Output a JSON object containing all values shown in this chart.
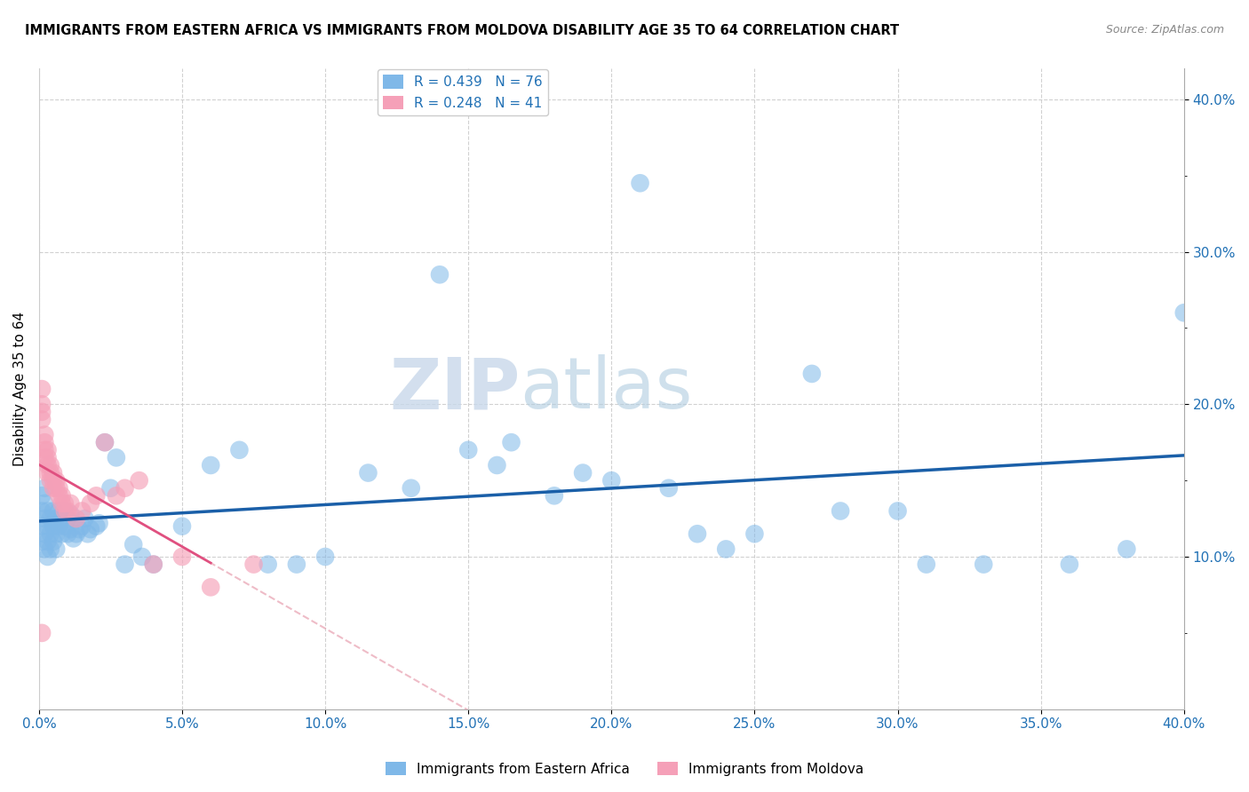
{
  "title": "IMMIGRANTS FROM EASTERN AFRICA VS IMMIGRANTS FROM MOLDOVA DISABILITY AGE 35 TO 64 CORRELATION CHART",
  "source": "Source: ZipAtlas.com",
  "ylabel": "Disability Age 35 to 64",
  "xlim": [
    0.0,
    0.4
  ],
  "ylim": [
    0.0,
    0.42
  ],
  "xticks": [
    0.0,
    0.05,
    0.1,
    0.15,
    0.2,
    0.25,
    0.3,
    0.35,
    0.4
  ],
  "yticks": [
    0.1,
    0.2,
    0.3,
    0.4
  ],
  "ytick_labels": [
    "10.0%",
    "20.0%",
    "30.0%",
    "40.0%"
  ],
  "xtick_labels": [
    "0.0%",
    "5.0%",
    "10.0%",
    "15.0%",
    "20.0%",
    "25.0%",
    "30.0%",
    "35.0%",
    "40.0%"
  ],
  "R_blue": 0.439,
  "N_blue": 76,
  "R_pink": 0.248,
  "N_pink": 41,
  "blue_color": "#7fb8e8",
  "pink_color": "#f5a0b8",
  "blue_line_color": "#1a5fa8",
  "pink_line_color": "#e05080",
  "pink_dash_color": "#e8a0b0",
  "watermark_zip": "ZIP",
  "watermark_atlas": "atlas",
  "legend_label_blue": "Immigrants from Eastern Africa",
  "legend_label_pink": "Immigrants from Moldova",
  "blue_scatter_x": [
    0.001,
    0.001,
    0.001,
    0.001,
    0.002,
    0.002,
    0.002,
    0.002,
    0.002,
    0.003,
    0.003,
    0.003,
    0.003,
    0.004,
    0.004,
    0.004,
    0.005,
    0.005,
    0.005,
    0.006,
    0.006,
    0.006,
    0.007,
    0.007,
    0.008,
    0.008,
    0.009,
    0.009,
    0.01,
    0.01,
    0.011,
    0.011,
    0.012,
    0.013,
    0.014,
    0.015,
    0.016,
    0.017,
    0.018,
    0.02,
    0.021,
    0.023,
    0.025,
    0.027,
    0.03,
    0.033,
    0.036,
    0.04,
    0.05,
    0.06,
    0.07,
    0.08,
    0.09,
    0.1,
    0.115,
    0.13,
    0.15,
    0.165,
    0.18,
    0.2,
    0.22,
    0.23,
    0.25,
    0.27,
    0.28,
    0.3,
    0.31,
    0.33,
    0.36,
    0.38,
    0.14,
    0.16,
    0.19,
    0.21,
    0.24,
    0.4
  ],
  "blue_scatter_y": [
    0.13,
    0.14,
    0.12,
    0.11,
    0.125,
    0.135,
    0.115,
    0.105,
    0.145,
    0.12,
    0.13,
    0.11,
    0.1,
    0.115,
    0.125,
    0.105,
    0.12,
    0.13,
    0.11,
    0.115,
    0.125,
    0.105,
    0.12,
    0.13,
    0.115,
    0.125,
    0.12,
    0.13,
    0.115,
    0.125,
    0.118,
    0.128,
    0.112,
    0.115,
    0.118,
    0.12,
    0.125,
    0.115,
    0.118,
    0.12,
    0.122,
    0.175,
    0.145,
    0.165,
    0.095,
    0.108,
    0.1,
    0.095,
    0.12,
    0.16,
    0.17,
    0.095,
    0.095,
    0.1,
    0.155,
    0.145,
    0.17,
    0.175,
    0.14,
    0.15,
    0.145,
    0.115,
    0.115,
    0.22,
    0.13,
    0.13,
    0.095,
    0.095,
    0.095,
    0.105,
    0.285,
    0.16,
    0.155,
    0.345,
    0.105,
    0.26
  ],
  "pink_scatter_x": [
    0.001,
    0.001,
    0.001,
    0.001,
    0.002,
    0.002,
    0.002,
    0.002,
    0.003,
    0.003,
    0.003,
    0.003,
    0.004,
    0.004,
    0.004,
    0.005,
    0.005,
    0.005,
    0.006,
    0.006,
    0.007,
    0.007,
    0.008,
    0.008,
    0.009,
    0.009,
    0.01,
    0.011,
    0.013,
    0.015,
    0.018,
    0.02,
    0.023,
    0.027,
    0.03,
    0.035,
    0.04,
    0.05,
    0.06,
    0.075,
    0.001
  ],
  "pink_scatter_y": [
    0.2,
    0.21,
    0.195,
    0.19,
    0.17,
    0.165,
    0.175,
    0.18,
    0.16,
    0.155,
    0.165,
    0.17,
    0.155,
    0.15,
    0.16,
    0.145,
    0.15,
    0.155,
    0.145,
    0.15,
    0.14,
    0.145,
    0.135,
    0.14,
    0.13,
    0.135,
    0.13,
    0.135,
    0.125,
    0.13,
    0.135,
    0.14,
    0.175,
    0.14,
    0.145,
    0.15,
    0.095,
    0.1,
    0.08,
    0.095,
    0.05
  ]
}
